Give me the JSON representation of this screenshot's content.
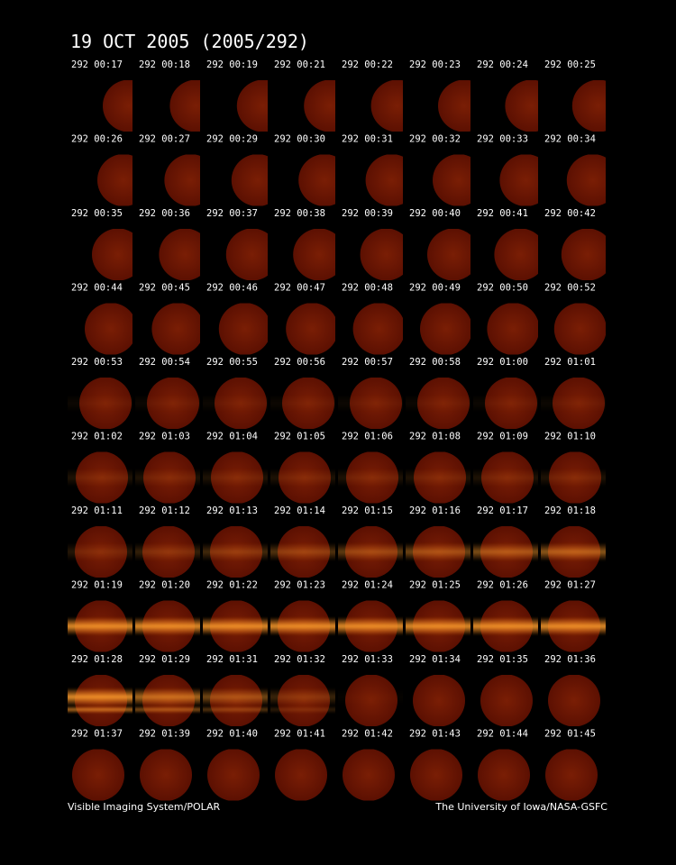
{
  "header": {
    "title": "19 OCT 2005  (2005/292)"
  },
  "rows": [
    [
      "292 00:17",
      "292 00:18",
      "292 00:19",
      "292 00:21",
      "292 00:22",
      "292 00:23",
      "292 00:24",
      "292 00:25"
    ],
    [
      "292 00:26",
      "292 00:27",
      "292 00:29",
      "292 00:30",
      "292 00:31",
      "292 00:32",
      "292 00:33",
      "292 00:34"
    ],
    [
      "292 00:35",
      "292 00:36",
      "292 00:37",
      "292 00:38",
      "292 00:39",
      "292 00:40",
      "292 00:41",
      "292 00:42"
    ],
    [
      "292 00:44",
      "292 00:45",
      "292 00:46",
      "292 00:47",
      "292 00:48",
      "292 00:49",
      "292 00:50",
      "292 00:52"
    ],
    [
      "292 00:53",
      "292 00:54",
      "292 00:55",
      "292 00:56",
      "292 00:57",
      "292 00:58",
      "292 01:00",
      "292 01:01"
    ],
    [
      "292 01:02",
      "292 01:03",
      "292 01:04",
      "292 01:05",
      "292 01:06",
      "292 01:08",
      "292 01:09",
      "292 01:10"
    ],
    [
      "292 01:11",
      "292 01:12",
      "292 01:13",
      "292 01:14",
      "292 01:15",
      "292 01:16",
      "292 01:17",
      "292 01:18"
    ],
    [
      "292 01:19",
      "292 01:20",
      "292 01:22",
      "292 01:23",
      "292 01:24",
      "292 01:25",
      "292 01:26",
      "292 01:27"
    ],
    [
      "292 01:28",
      "292 01:29",
      "292 01:31",
      "292 01:32",
      "292 01:33",
      "292 01:34",
      "292 01:35",
      "292 01:36"
    ],
    [
      "292 01:37",
      "292 01:39",
      "292 01:40",
      "292 01:41",
      "292 01:42",
      "292 01:43",
      "292 01:44",
      "292 01:45"
    ]
  ],
  "footer": {
    "left": "Visible Imaging System/POLAR",
    "right": "The University of Iowa/NASA-GSFC"
  }
}
